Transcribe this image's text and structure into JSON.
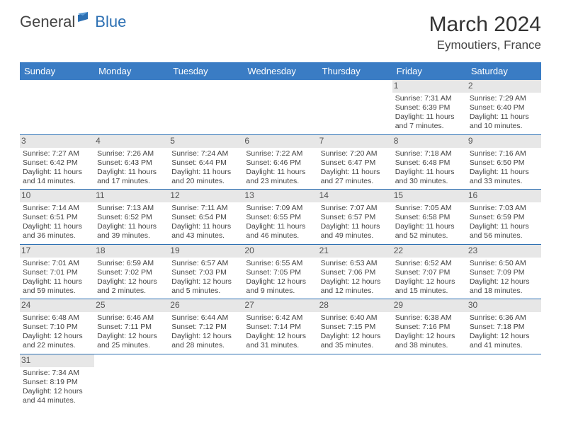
{
  "logo": {
    "text1": "General",
    "text2": "Blue"
  },
  "title": "March 2024",
  "location": "Eymoutiers, France",
  "dow": [
    "Sunday",
    "Monday",
    "Tuesday",
    "Wednesday",
    "Thursday",
    "Friday",
    "Saturday"
  ],
  "colors": {
    "header_bg": "#3a7cc4",
    "divider": "#2d70b3",
    "daynum_bg": "#e7e7e7",
    "text": "#444444"
  },
  "weeks": [
    [
      null,
      null,
      null,
      null,
      null,
      {
        "n": "1",
        "sr": "Sunrise: 7:31 AM",
        "ss": "Sunset: 6:39 PM",
        "d1": "Daylight: 11 hours",
        "d2": "and 7 minutes."
      },
      {
        "n": "2",
        "sr": "Sunrise: 7:29 AM",
        "ss": "Sunset: 6:40 PM",
        "d1": "Daylight: 11 hours",
        "d2": "and 10 minutes."
      }
    ],
    [
      {
        "n": "3",
        "sr": "Sunrise: 7:27 AM",
        "ss": "Sunset: 6:42 PM",
        "d1": "Daylight: 11 hours",
        "d2": "and 14 minutes."
      },
      {
        "n": "4",
        "sr": "Sunrise: 7:26 AM",
        "ss": "Sunset: 6:43 PM",
        "d1": "Daylight: 11 hours",
        "d2": "and 17 minutes."
      },
      {
        "n": "5",
        "sr": "Sunrise: 7:24 AM",
        "ss": "Sunset: 6:44 PM",
        "d1": "Daylight: 11 hours",
        "d2": "and 20 minutes."
      },
      {
        "n": "6",
        "sr": "Sunrise: 7:22 AM",
        "ss": "Sunset: 6:46 PM",
        "d1": "Daylight: 11 hours",
        "d2": "and 23 minutes."
      },
      {
        "n": "7",
        "sr": "Sunrise: 7:20 AM",
        "ss": "Sunset: 6:47 PM",
        "d1": "Daylight: 11 hours",
        "d2": "and 27 minutes."
      },
      {
        "n": "8",
        "sr": "Sunrise: 7:18 AM",
        "ss": "Sunset: 6:48 PM",
        "d1": "Daylight: 11 hours",
        "d2": "and 30 minutes."
      },
      {
        "n": "9",
        "sr": "Sunrise: 7:16 AM",
        "ss": "Sunset: 6:50 PM",
        "d1": "Daylight: 11 hours",
        "d2": "and 33 minutes."
      }
    ],
    [
      {
        "n": "10",
        "sr": "Sunrise: 7:14 AM",
        "ss": "Sunset: 6:51 PM",
        "d1": "Daylight: 11 hours",
        "d2": "and 36 minutes."
      },
      {
        "n": "11",
        "sr": "Sunrise: 7:13 AM",
        "ss": "Sunset: 6:52 PM",
        "d1": "Daylight: 11 hours",
        "d2": "and 39 minutes."
      },
      {
        "n": "12",
        "sr": "Sunrise: 7:11 AM",
        "ss": "Sunset: 6:54 PM",
        "d1": "Daylight: 11 hours",
        "d2": "and 43 minutes."
      },
      {
        "n": "13",
        "sr": "Sunrise: 7:09 AM",
        "ss": "Sunset: 6:55 PM",
        "d1": "Daylight: 11 hours",
        "d2": "and 46 minutes."
      },
      {
        "n": "14",
        "sr": "Sunrise: 7:07 AM",
        "ss": "Sunset: 6:57 PM",
        "d1": "Daylight: 11 hours",
        "d2": "and 49 minutes."
      },
      {
        "n": "15",
        "sr": "Sunrise: 7:05 AM",
        "ss": "Sunset: 6:58 PM",
        "d1": "Daylight: 11 hours",
        "d2": "and 52 minutes."
      },
      {
        "n": "16",
        "sr": "Sunrise: 7:03 AM",
        "ss": "Sunset: 6:59 PM",
        "d1": "Daylight: 11 hours",
        "d2": "and 56 minutes."
      }
    ],
    [
      {
        "n": "17",
        "sr": "Sunrise: 7:01 AM",
        "ss": "Sunset: 7:01 PM",
        "d1": "Daylight: 11 hours",
        "d2": "and 59 minutes."
      },
      {
        "n": "18",
        "sr": "Sunrise: 6:59 AM",
        "ss": "Sunset: 7:02 PM",
        "d1": "Daylight: 12 hours",
        "d2": "and 2 minutes."
      },
      {
        "n": "19",
        "sr": "Sunrise: 6:57 AM",
        "ss": "Sunset: 7:03 PM",
        "d1": "Daylight: 12 hours",
        "d2": "and 5 minutes."
      },
      {
        "n": "20",
        "sr": "Sunrise: 6:55 AM",
        "ss": "Sunset: 7:05 PM",
        "d1": "Daylight: 12 hours",
        "d2": "and 9 minutes."
      },
      {
        "n": "21",
        "sr": "Sunrise: 6:53 AM",
        "ss": "Sunset: 7:06 PM",
        "d1": "Daylight: 12 hours",
        "d2": "and 12 minutes."
      },
      {
        "n": "22",
        "sr": "Sunrise: 6:52 AM",
        "ss": "Sunset: 7:07 PM",
        "d1": "Daylight: 12 hours",
        "d2": "and 15 minutes."
      },
      {
        "n": "23",
        "sr": "Sunrise: 6:50 AM",
        "ss": "Sunset: 7:09 PM",
        "d1": "Daylight: 12 hours",
        "d2": "and 18 minutes."
      }
    ],
    [
      {
        "n": "24",
        "sr": "Sunrise: 6:48 AM",
        "ss": "Sunset: 7:10 PM",
        "d1": "Daylight: 12 hours",
        "d2": "and 22 minutes."
      },
      {
        "n": "25",
        "sr": "Sunrise: 6:46 AM",
        "ss": "Sunset: 7:11 PM",
        "d1": "Daylight: 12 hours",
        "d2": "and 25 minutes."
      },
      {
        "n": "26",
        "sr": "Sunrise: 6:44 AM",
        "ss": "Sunset: 7:12 PM",
        "d1": "Daylight: 12 hours",
        "d2": "and 28 minutes."
      },
      {
        "n": "27",
        "sr": "Sunrise: 6:42 AM",
        "ss": "Sunset: 7:14 PM",
        "d1": "Daylight: 12 hours",
        "d2": "and 31 minutes."
      },
      {
        "n": "28",
        "sr": "Sunrise: 6:40 AM",
        "ss": "Sunset: 7:15 PM",
        "d1": "Daylight: 12 hours",
        "d2": "and 35 minutes."
      },
      {
        "n": "29",
        "sr": "Sunrise: 6:38 AM",
        "ss": "Sunset: 7:16 PM",
        "d1": "Daylight: 12 hours",
        "d2": "and 38 minutes."
      },
      {
        "n": "30",
        "sr": "Sunrise: 6:36 AM",
        "ss": "Sunset: 7:18 PM",
        "d1": "Daylight: 12 hours",
        "d2": "and 41 minutes."
      }
    ],
    [
      {
        "n": "31",
        "sr": "Sunrise: 7:34 AM",
        "ss": "Sunset: 8:19 PM",
        "d1": "Daylight: 12 hours",
        "d2": "and 44 minutes."
      },
      null,
      null,
      null,
      null,
      null,
      null
    ]
  ]
}
